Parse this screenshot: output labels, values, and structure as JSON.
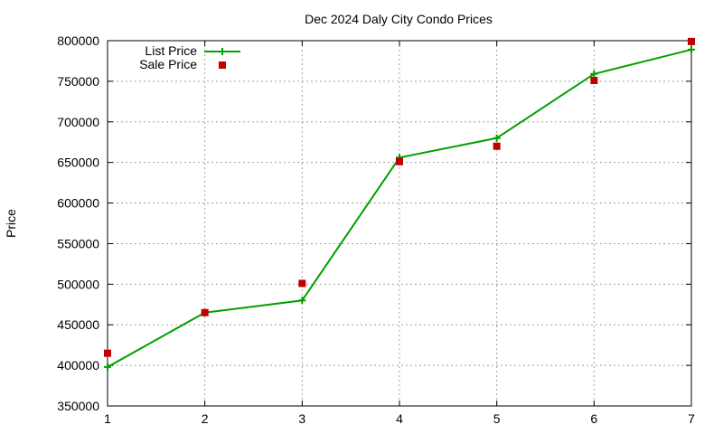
{
  "chart_data": {
    "type": "line",
    "title": "Dec 2024 Daly City Condo Prices",
    "xlabel": "",
    "ylabel": "Price",
    "xlim": [
      1,
      7
    ],
    "ylim": [
      350000,
      800000
    ],
    "x_ticks": [
      "1",
      "2",
      "3",
      "4",
      "5",
      "6",
      "7"
    ],
    "y_ticks": [
      "350000",
      "400000",
      "450000",
      "500000",
      "550000",
      "600000",
      "650000",
      "700000",
      "750000",
      "800000"
    ],
    "grid": true,
    "legend_position": "top-left",
    "x": [
      1,
      2,
      3,
      4,
      5,
      6,
      7
    ],
    "series": [
      {
        "name": "List Price",
        "style": "line-with-plus-markers",
        "color": "#00a000",
        "values": [
          398000,
          465000,
          480000,
          656000,
          680000,
          759000,
          789000
        ]
      },
      {
        "name": "Sale Price",
        "style": "square-markers",
        "color": "#c00000",
        "values": [
          415000,
          465000,
          501000,
          651000,
          670000,
          751000,
          799000
        ]
      }
    ]
  }
}
